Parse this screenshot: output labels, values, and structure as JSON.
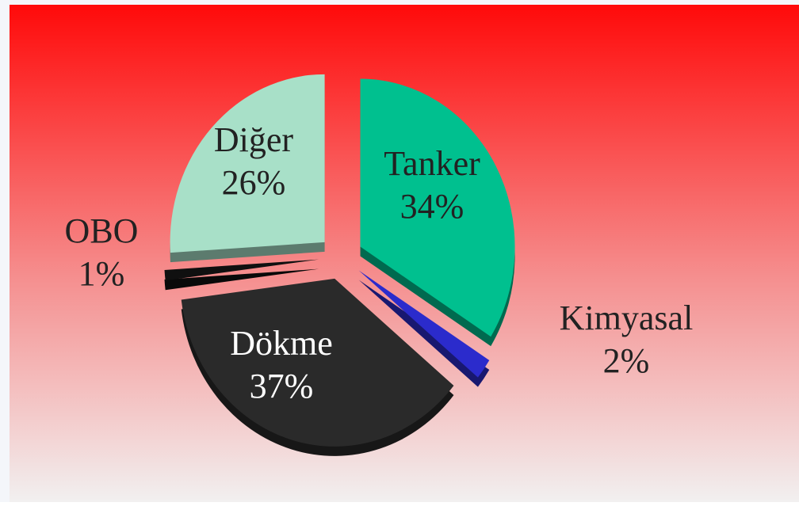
{
  "chart_data": {
    "type": "pie",
    "categories": [
      "Tanker",
      "Kimyasal",
      "Dökme",
      "OBO",
      "Diğer"
    ],
    "values": [
      34,
      2,
      37,
      1,
      26
    ],
    "value_labels": [
      "34%",
      "2%",
      "37%",
      "1%",
      "26%"
    ],
    "colors": [
      "#00c08f",
      "#2b2bcc",
      "#2a2a2a",
      "#101010",
      "#a8e0c8"
    ]
  }
}
